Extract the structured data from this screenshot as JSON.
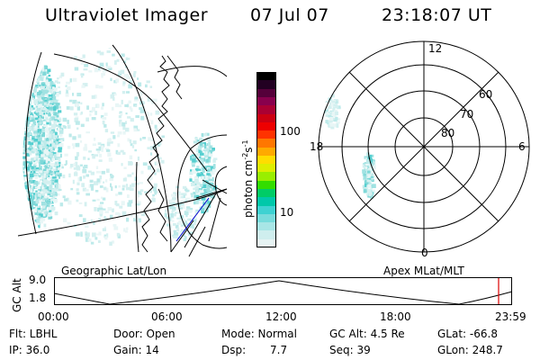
{
  "header": {
    "instrument": "Ultraviolet Imager",
    "date": "07 Jul 07",
    "time": "23:18:07 UT"
  },
  "colorbar": {
    "unit_label": "photon cm",
    "unit_exp1": "-2",
    "unit_mid": "s",
    "unit_exp2": "-1",
    "ticks": [
      "100",
      "10"
    ],
    "colors": [
      "#e6f3f3",
      "#cfeeee",
      "#a8e6e6",
      "#78dcdc",
      "#3ed2d2",
      "#00c8aa",
      "#00cc66",
      "#33dd00",
      "#99ee00",
      "#ddee00",
      "#ffdd00",
      "#ffaa00",
      "#ff7700",
      "#ff3300",
      "#ee0000",
      "#cc0011",
      "#aa0033",
      "#88004d",
      "#55003a",
      "#220022",
      "#000000"
    ]
  },
  "geo_map": {
    "label": "Geographic Lat/Lon"
  },
  "polar": {
    "label": "Apex MLat/MLT",
    "mlt_labels": {
      "top": "12",
      "left": "18",
      "right": "6",
      "bottom": "0"
    },
    "lat_labels": [
      "60",
      "70",
      "80"
    ]
  },
  "altitude_plot": {
    "ylabel": "GC Alt",
    "ytick_top": "9.0",
    "ytick_bottom": "1.8",
    "xticks": [
      "00:00",
      "06:00",
      "12:00",
      "18:00",
      "23:59"
    ],
    "current_marker_color": "#dd0000"
  },
  "footer": {
    "flt": "Flt: LBHL",
    "ip": "IP: 36.0",
    "door": "Door: Open",
    "gain": "Gain: 14",
    "mode": "Mode: Normal",
    "dsp_label": "Dsp:",
    "dsp_value": "7.7",
    "gc_alt": "GC Alt: 4.5 Re",
    "seq": "Seq: 39",
    "glat": "GLat: -66.8",
    "glon": "GLon: 248.7"
  }
}
